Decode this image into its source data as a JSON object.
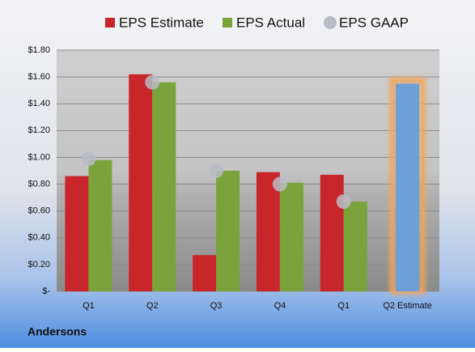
{
  "chart_data": {
    "type": "bar",
    "title": "Andersons",
    "categories": [
      "Q1",
      "Q2",
      "Q3",
      "Q4",
      "Q1",
      "Q2 Estimate"
    ],
    "series": [
      {
        "name": "EPS Estimate",
        "color": "#c8262b",
        "kind": "bar",
        "values": [
          0.86,
          1.62,
          0.27,
          0.89,
          0.87,
          1.55
        ]
      },
      {
        "name": "EPS Actual",
        "color": "#7aa33c",
        "kind": "bar",
        "values": [
          0.98,
          1.56,
          0.9,
          0.81,
          0.67,
          null
        ]
      },
      {
        "name": "EPS GAAP",
        "color": "#b8bcc4",
        "kind": "dot",
        "values": [
          0.99,
          1.56,
          0.9,
          0.8,
          0.67,
          null
        ]
      }
    ],
    "highlight": {
      "series": 0,
      "index": 5,
      "color": "#6d9fd9",
      "glow": "#f2a55a"
    },
    "ylim": [
      0,
      1.8
    ],
    "yticks": [
      {
        "value": 0,
        "label": "$-"
      },
      {
        "value": 0.2,
        "label": "$0.20"
      },
      {
        "value": 0.4,
        "label": "$0.40"
      },
      {
        "value": 0.6,
        "label": "$0.60"
      },
      {
        "value": 0.8,
        "label": "$0.80"
      },
      {
        "value": 1.0,
        "label": "$1.00"
      },
      {
        "value": 1.2,
        "label": "$1.20"
      },
      {
        "value": 1.4,
        "label": "$1.40"
      },
      {
        "value": 1.6,
        "label": "$1.60"
      },
      {
        "value": 1.8,
        "label": "$1.80"
      }
    ],
    "grid": true,
    "legend": "top"
  }
}
